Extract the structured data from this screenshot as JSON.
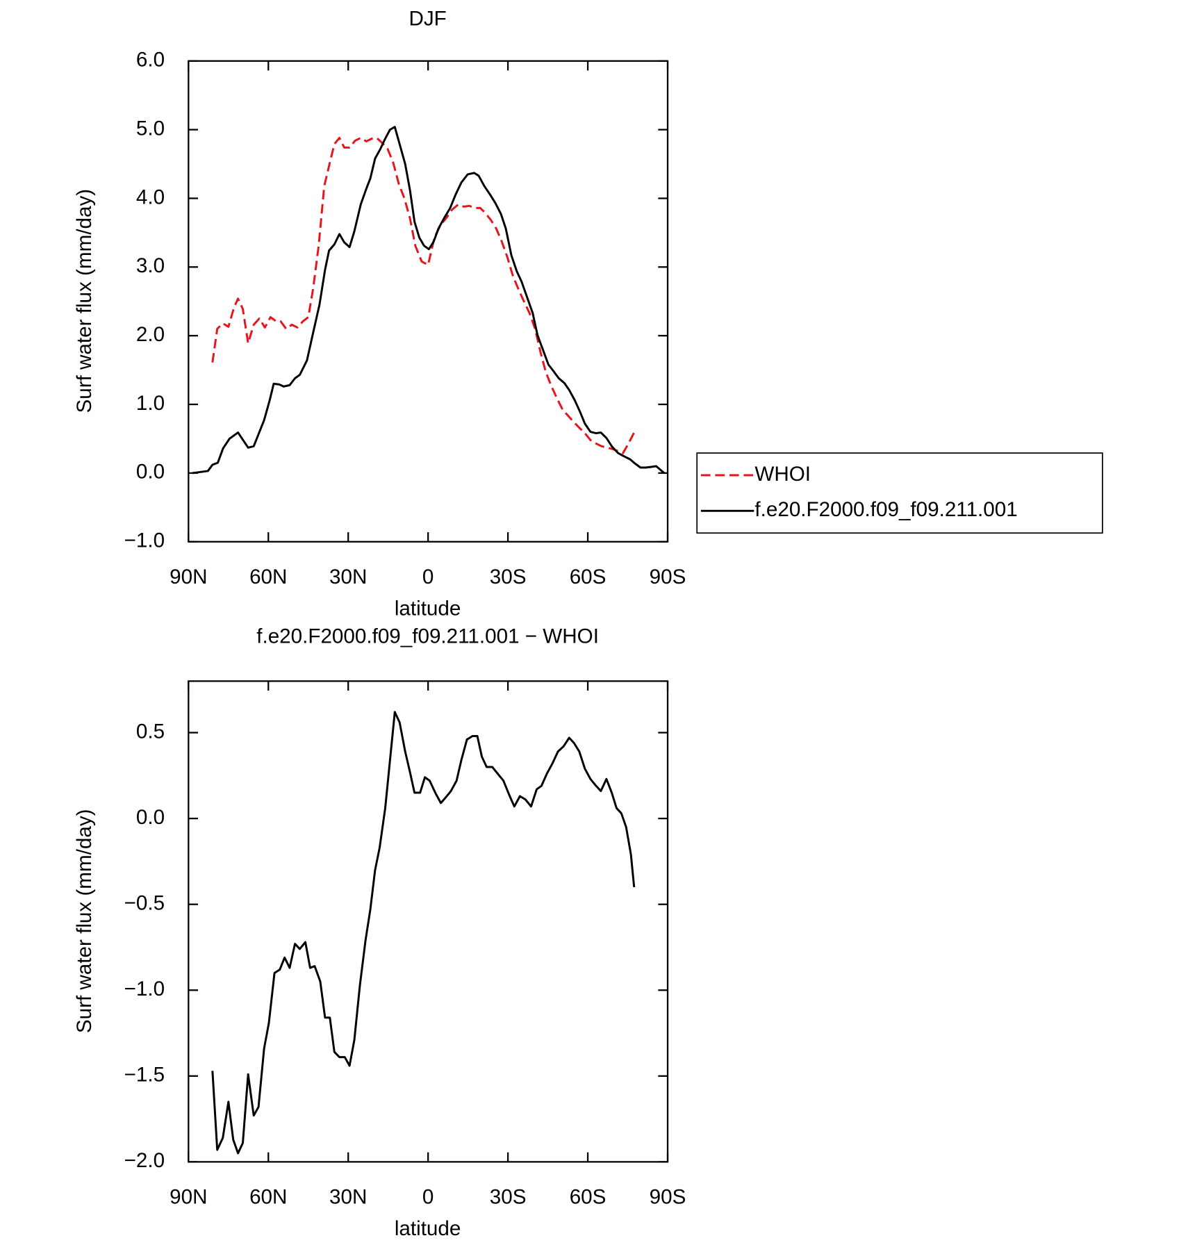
{
  "chart_data": [
    {
      "type": "line",
      "title": "DJF",
      "ylabel": "Surf water flux (mm/day)",
      "xlabel": "latitude",
      "xlim": [
        90,
        -90
      ],
      "ylim": [
        -1,
        6
      ],
      "xticks": [
        {
          "value": 90,
          "label": "90N"
        },
        {
          "value": 60,
          "label": "60N"
        },
        {
          "value": 30,
          "label": "30N"
        },
        0,
        {
          "value": -30,
          "label": "30S"
        },
        {
          "value": -60,
          "label": "60S"
        },
        {
          "value": -90,
          "label": "90S"
        }
      ],
      "yticks": [
        {
          "value": -1,
          "label": "−1.0"
        },
        {
          "value": 0,
          "label": "0.0"
        },
        {
          "value": 1,
          "label": "1.0"
        },
        {
          "value": 2,
          "label": "2.0"
        },
        {
          "value": 3,
          "label": "3.0"
        },
        {
          "value": 4,
          "label": "4.0"
        },
        {
          "value": 5,
          "label": "5.0"
        },
        {
          "value": 6,
          "label": "6.0"
        }
      ],
      "legend": "outside-right",
      "series": [
        {
          "name": "WHOI",
          "color": "#e8141b",
          "line_style": "dashed",
          "x": [
            81,
            79.2,
            77.1,
            75,
            72.9,
            71.4,
            69.6,
            67.6,
            65.5,
            63.4,
            61.3,
            59.2,
            57.1,
            55.4,
            53.3,
            51.2,
            49.1,
            47,
            45,
            43.2,
            41.1,
            39,
            36.9,
            35.2,
            33.3,
            31.5,
            29.5,
            27.4,
            25.3,
            23.2,
            21.1,
            19.3,
            17.3,
            15.2,
            13.1,
            11,
            8.9,
            6.8,
            4.8,
            2.4,
            0,
            -2.4,
            -4.8,
            -6.8,
            -8.9,
            -11.3,
            -13.4,
            -15.5,
            -17.6,
            -19.6,
            -21.4,
            -23.5,
            -25.6,
            -27.7,
            -29.8,
            -31.8,
            -33.9,
            -36,
            -38.1,
            -40.2,
            -42.3,
            -44.3,
            -46.4,
            -48.5,
            -50.6,
            -52.7,
            -54.8,
            -56.8,
            -58.9,
            -61,
            -63.1,
            -65.2,
            -67.3,
            -69.3,
            -71.4,
            -73.2,
            -75.3,
            -77.4
          ],
          "values": [
            1.61,
            2.1,
            2.18,
            2.13,
            2.41,
            2.54,
            2.39,
            1.89,
            2.16,
            2.25,
            2.12,
            2.27,
            2.21,
            2.21,
            2.1,
            2.16,
            2.12,
            2.21,
            2.27,
            2.68,
            3.31,
            4.18,
            4.52,
            4.79,
            4.88,
            4.74,
            4.74,
            4.84,
            4.88,
            4.83,
            4.87,
            4.88,
            4.81,
            4.72,
            4.52,
            4.21,
            4.0,
            3.71,
            3.31,
            3.08,
            3.03,
            3.43,
            3.62,
            3.71,
            3.83,
            3.91,
            3.88,
            3.89,
            3.86,
            3.86,
            3.79,
            3.69,
            3.56,
            3.37,
            3.14,
            2.88,
            2.68,
            2.5,
            2.33,
            2.1,
            1.75,
            1.46,
            1.26,
            1.08,
            0.92,
            0.83,
            0.74,
            0.66,
            0.58,
            0.48,
            0.43,
            0.39,
            0.37,
            0.35,
            0.32,
            0.29,
            0.43,
            0.59
          ]
        },
        {
          "name": "f.e20.F2000.f09_f09.211.001",
          "color": "#000000",
          "line_style": "solid",
          "x": [
            88.5,
            82.7,
            81,
            79,
            77,
            74.6,
            71.4,
            67.6,
            65.5,
            61.6,
            59.5,
            58,
            55.9,
            54.2,
            52,
            50,
            48.2,
            45.5,
            43.2,
            40.8,
            38.7,
            37.2,
            35.2,
            33.3,
            31.5,
            29.5,
            27.7,
            25.3,
            23.2,
            21.7,
            19.9,
            17.9,
            16.1,
            14.3,
            12.5,
            10.4,
            8.6,
            6.8,
            5.1,
            3.3,
            1.5,
            -0.3,
            -2.1,
            -3.9,
            -6,
            -8.3,
            -10.4,
            -12.5,
            -14.9,
            -17.3,
            -19,
            -21.1,
            -23.2,
            -25.3,
            -27.4,
            -29.2,
            -31.3,
            -33.3,
            -35.1,
            -37.2,
            -39.3,
            -41.1,
            -43.2,
            -45.2,
            -47,
            -49.1,
            -51.2,
            -53,
            -55.1,
            -57.1,
            -58.9,
            -61,
            -63.1,
            -64.9,
            -67,
            -69,
            -71.4,
            -73.8,
            -75.9,
            -77.7,
            -79.8,
            -81.8,
            -83.9,
            -85.7,
            -87.2,
            -88.7
          ],
          "values": [
            0.0,
            0.03,
            0.12,
            0.15,
            0.36,
            0.5,
            0.59,
            0.37,
            0.39,
            0.77,
            1.06,
            1.3,
            1.29,
            1.26,
            1.28,
            1.38,
            1.43,
            1.64,
            2.04,
            2.45,
            2.96,
            3.24,
            3.33,
            3.48,
            3.36,
            3.29,
            3.52,
            3.91,
            4.14,
            4.29,
            4.58,
            4.72,
            4.87,
            5.0,
            5.04,
            4.75,
            4.5,
            4.12,
            3.66,
            3.43,
            3.31,
            3.26,
            3.37,
            3.56,
            3.71,
            3.86,
            4.06,
            4.23,
            4.35,
            4.37,
            4.33,
            4.18,
            4.06,
            3.93,
            3.77,
            3.56,
            3.17,
            2.94,
            2.79,
            2.56,
            2.33,
            2.01,
            1.79,
            1.58,
            1.49,
            1.38,
            1.31,
            1.21,
            1.06,
            0.89,
            0.72,
            0.6,
            0.58,
            0.59,
            0.51,
            0.39,
            0.29,
            0.24,
            0.2,
            0.14,
            0.08,
            0.08,
            0.09,
            0.1,
            0.05,
            0.0
          ]
        }
      ]
    },
    {
      "type": "line",
      "title": "f.e20.F2000.f09_f09.211.001 − WHOI",
      "ylabel": "Surf water flux (mm/day)",
      "xlabel": "latitude",
      "xlim": [
        90,
        -90
      ],
      "ylim": [
        -2,
        0.8
      ],
      "xticks": [
        {
          "value": 90,
          "label": "90N"
        },
        {
          "value": 60,
          "label": "60N"
        },
        {
          "value": 30,
          "label": "30N"
        },
        0,
        {
          "value": -30,
          "label": "30S"
        },
        {
          "value": -60,
          "label": "60S"
        },
        {
          "value": -90,
          "label": "90S"
        }
      ],
      "yticks": [
        {
          "value": -2,
          "label": "−2.0"
        },
        {
          "value": -1.5,
          "label": "−1.5"
        },
        {
          "value": -1,
          "label": "−1.0"
        },
        {
          "value": -0.5,
          "label": "−0.5"
        },
        {
          "value": 0,
          "label": "0.0"
        },
        0.5
      ],
      "series": [
        {
          "color": "#000000",
          "line_style": "solid",
          "x": [
            81,
            79.2,
            77.1,
            75,
            73.2,
            71.4,
            69.6,
            67.6,
            65.5,
            63.7,
            61.6,
            59.8,
            57.7,
            55.7,
            53.9,
            52,
            50,
            48.2,
            46.1,
            44.3,
            42.6,
            40.5,
            38.7,
            36.9,
            35.2,
            33.3,
            31.3,
            29.5,
            27.7,
            25.6,
            23.5,
            21.7,
            19.9,
            18.2,
            16.1,
            14.3,
            12.5,
            10.7,
            8.6,
            6.8,
            5.1,
            3,
            1.2,
            -0.6,
            -2.7,
            -4.8,
            -6.5,
            -8.6,
            -10.7,
            -12.5,
            -14.6,
            -16.7,
            -18.5,
            -20.2,
            -22,
            -24.1,
            -26.2,
            -28.3,
            -30.4,
            -32.4,
            -34.5,
            -36.6,
            -38.7,
            -40.8,
            -42.6,
            -44.6,
            -46.7,
            -48.8,
            -50.9,
            -53,
            -54.8,
            -56.8,
            -58.9,
            -61,
            -63.1,
            -64.9,
            -67,
            -69,
            -70.8,
            -72.6,
            -74.4,
            -76.2,
            -77.4
          ],
          "values": [
            -1.47,
            -1.93,
            -1.86,
            -1.65,
            -1.87,
            -1.95,
            -1.89,
            -1.49,
            -1.73,
            -1.68,
            -1.34,
            -1.19,
            -0.9,
            -0.88,
            -0.81,
            -0.87,
            -0.73,
            -0.76,
            -0.72,
            -0.87,
            -0.86,
            -0.95,
            -1.16,
            -1.16,
            -1.36,
            -1.39,
            -1.39,
            -1.44,
            -1.29,
            -0.97,
            -0.71,
            -0.53,
            -0.3,
            -0.17,
            0.06,
            0.34,
            0.62,
            0.56,
            0.39,
            0.27,
            0.15,
            0.15,
            0.24,
            0.22,
            0.15,
            0.09,
            0.12,
            0.16,
            0.22,
            0.34,
            0.46,
            0.48,
            0.48,
            0.36,
            0.3,
            0.3,
            0.26,
            0.22,
            0.14,
            0.07,
            0.13,
            0.11,
            0.07,
            0.17,
            0.19,
            0.26,
            0.32,
            0.39,
            0.42,
            0.47,
            0.44,
            0.39,
            0.29,
            0.23,
            0.19,
            0.16,
            0.23,
            0.15,
            0.06,
            0.03,
            -0.05,
            -0.21,
            -0.4
          ]
        }
      ]
    }
  ]
}
